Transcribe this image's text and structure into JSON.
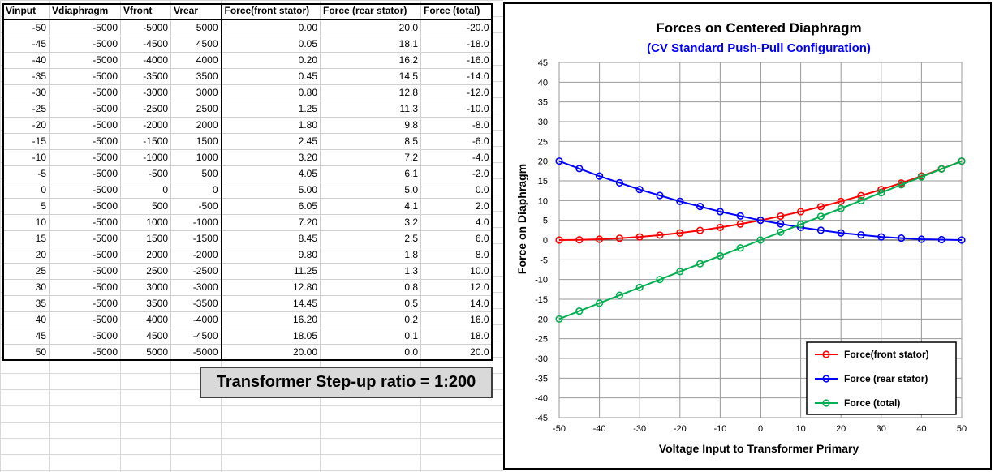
{
  "table": {
    "columns": [
      "Vinput",
      "Vdiaphragm",
      "Vfront",
      "Vrear",
      "Force(front stator)",
      "Force (rear stator)",
      "Force (total)"
    ],
    "rows": [
      [
        "-50",
        "-5000",
        "-5000",
        "5000",
        "0.00",
        "20.0",
        "-20.0"
      ],
      [
        "-45",
        "-5000",
        "-4500",
        "4500",
        "0.05",
        "18.1",
        "-18.0"
      ],
      [
        "-40",
        "-5000",
        "-4000",
        "4000",
        "0.20",
        "16.2",
        "-16.0"
      ],
      [
        "-35",
        "-5000",
        "-3500",
        "3500",
        "0.45",
        "14.5",
        "-14.0"
      ],
      [
        "-30",
        "-5000",
        "-3000",
        "3000",
        "0.80",
        "12.8",
        "-12.0"
      ],
      [
        "-25",
        "-5000",
        "-2500",
        "2500",
        "1.25",
        "11.3",
        "-10.0"
      ],
      [
        "-20",
        "-5000",
        "-2000",
        "2000",
        "1.80",
        "9.8",
        "-8.0"
      ],
      [
        "-15",
        "-5000",
        "-1500",
        "1500",
        "2.45",
        "8.5",
        "-6.0"
      ],
      [
        "-10",
        "-5000",
        "-1000",
        "1000",
        "3.20",
        "7.2",
        "-4.0"
      ],
      [
        "-5",
        "-5000",
        "-500",
        "500",
        "4.05",
        "6.1",
        "-2.0"
      ],
      [
        "0",
        "-5000",
        "0",
        "0",
        "5.00",
        "5.0",
        "0.0"
      ],
      [
        "5",
        "-5000",
        "500",
        "-500",
        "6.05",
        "4.1",
        "2.0"
      ],
      [
        "10",
        "-5000",
        "1000",
        "-1000",
        "7.20",
        "3.2",
        "4.0"
      ],
      [
        "15",
        "-5000",
        "1500",
        "-1500",
        "8.45",
        "2.5",
        "6.0"
      ],
      [
        "20",
        "-5000",
        "2000",
        "-2000",
        "9.80",
        "1.8",
        "8.0"
      ],
      [
        "25",
        "-5000",
        "2500",
        "-2500",
        "11.25",
        "1.3",
        "10.0"
      ],
      [
        "30",
        "-5000",
        "3000",
        "-3000",
        "12.80",
        "0.8",
        "12.0"
      ],
      [
        "35",
        "-5000",
        "3500",
        "-3500",
        "14.45",
        "0.5",
        "14.0"
      ],
      [
        "40",
        "-5000",
        "4000",
        "-4000",
        "16.20",
        "0.2",
        "16.0"
      ],
      [
        "45",
        "-5000",
        "4500",
        "-4500",
        "18.05",
        "0.1",
        "18.0"
      ],
      [
        "50",
        "-5000",
        "5000",
        "-5000",
        "20.00",
        "0.0",
        "20.0"
      ]
    ]
  },
  "note": {
    "text": "Transformer Step-up ratio = 1:200"
  },
  "chart_data": {
    "type": "line",
    "title": "Forces on Centered Diaphragm",
    "subtitle": "(CV Standard Push-Pull Configuration)",
    "xlabel": "Voltage Input to Transformer Primary",
    "ylabel": "Force on Diaphragm",
    "xlim": [
      -50,
      50
    ],
    "ylim": [
      -45,
      45
    ],
    "xticks": [
      -50,
      -40,
      -30,
      -20,
      -10,
      0,
      10,
      20,
      30,
      40,
      50
    ],
    "yticks": [
      45,
      40,
      35,
      30,
      25,
      20,
      15,
      10,
      5,
      0,
      -5,
      -10,
      -15,
      -20,
      -25,
      -30,
      -35,
      -40,
      -45
    ],
    "grid": true,
    "legend_position": "bottom-right",
    "x": [
      -50,
      -45,
      -40,
      -35,
      -30,
      -25,
      -20,
      -15,
      -10,
      -5,
      0,
      5,
      10,
      15,
      20,
      25,
      30,
      35,
      40,
      45,
      50
    ],
    "series": [
      {
        "name": "Force(front stator)",
        "color": "#ff0000",
        "values": [
          0.0,
          0.05,
          0.2,
          0.45,
          0.8,
          1.25,
          1.8,
          2.45,
          3.2,
          4.05,
          5.0,
          6.05,
          7.2,
          8.45,
          9.8,
          11.25,
          12.8,
          14.45,
          16.2,
          18.05,
          20.0
        ]
      },
      {
        "name": "Force (rear stator)",
        "color": "#0000ff",
        "values": [
          20.0,
          18.1,
          16.2,
          14.5,
          12.8,
          11.3,
          9.8,
          8.5,
          7.2,
          6.1,
          5.0,
          4.1,
          3.2,
          2.5,
          1.8,
          1.3,
          0.8,
          0.5,
          0.2,
          0.1,
          0.0
        ]
      },
      {
        "name": "Force (total)",
        "color": "#00b050",
        "values": [
          -20.0,
          -18.0,
          -16.0,
          -14.0,
          -12.0,
          -10.0,
          -8.0,
          -6.0,
          -4.0,
          -2.0,
          0.0,
          2.0,
          4.0,
          6.0,
          8.0,
          10.0,
          12.0,
          14.0,
          16.0,
          18.0,
          20.0
        ]
      }
    ],
    "title_color": "#000000",
    "subtitle_color": "#0000ff"
  }
}
